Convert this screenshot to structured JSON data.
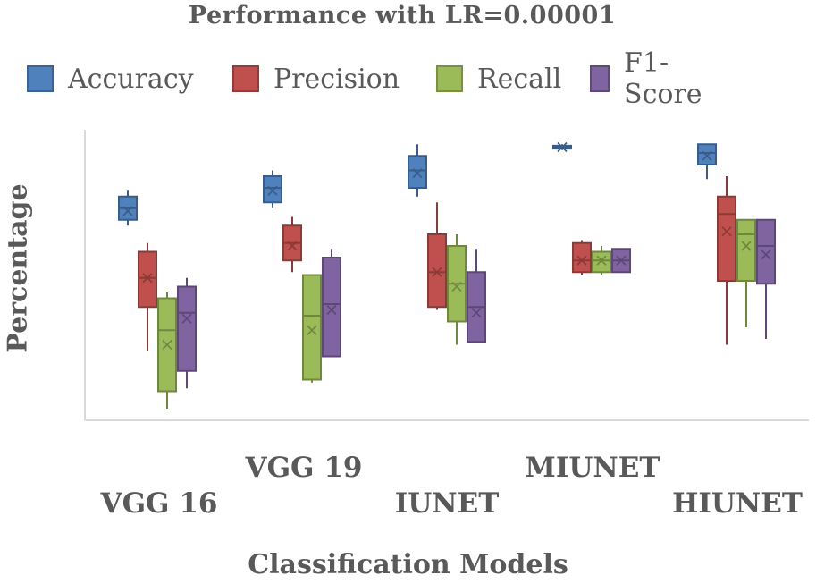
{
  "chart_data": {
    "type": "box",
    "title": "Performance with LR=0.00001",
    "xlabel": "Classification Models",
    "ylabel": "Percentage",
    "ylim": [
      0,
      100
    ],
    "grid": false,
    "legend_position": "top",
    "categories": [
      "VGG 16",
      "VGG 19",
      "IUNET",
      "MIUNET",
      "HIUNET"
    ],
    "series": [
      {
        "name": "Accuracy",
        "color": "#4F81BD",
        "boxes": [
          {
            "min": 67,
            "q1": 69,
            "median": 73,
            "mean": 72,
            "q3": 77,
            "max": 79
          },
          {
            "min": 73,
            "q1": 75,
            "median": 80,
            "mean": 79,
            "q3": 84,
            "max": 86
          },
          {
            "min": 77,
            "q1": 80,
            "median": 86,
            "mean": 85,
            "q3": 91,
            "max": 95
          },
          {
            "min": 93,
            "q1": 93.5,
            "median": 94,
            "mean": 94,
            "q3": 94.5,
            "max": 95
          },
          {
            "min": 83,
            "q1": 88,
            "median": 92,
            "mean": 91,
            "q3": 95,
            "max": 95
          }
        ]
      },
      {
        "name": "Precision",
        "color": "#C0504D",
        "boxes": [
          {
            "min": 24,
            "q1": 39,
            "median": 49,
            "mean": 49,
            "q3": 58,
            "max": 61
          },
          {
            "min": 51,
            "q1": 55,
            "median": 61,
            "mean": 60,
            "q3": 67,
            "max": 70
          },
          {
            "min": 38,
            "q1": 39,
            "median": 51,
            "mean": 51,
            "q3": 64,
            "max": 75
          },
          {
            "min": 50,
            "q1": 51,
            "median": 55,
            "mean": 55,
            "q3": 61,
            "max": 62
          },
          {
            "min": 26,
            "q1": 48,
            "median": 71,
            "mean": 65,
            "q3": 77,
            "max": 84
          }
        ]
      },
      {
        "name": "Recall",
        "color": "#9BBB59",
        "boxes": [
          {
            "min": 4,
            "q1": 10,
            "median": 31,
            "mean": 26,
            "q3": 42,
            "max": 44
          },
          {
            "min": 13,
            "q1": 14,
            "median": 36,
            "mean": 31,
            "q3": 50,
            "max": 50
          },
          {
            "min": 26,
            "q1": 34,
            "median": 47,
            "mean": 46,
            "q3": 60,
            "max": 64
          },
          {
            "min": 50,
            "q1": 51,
            "median": 55,
            "mean": 55,
            "q3": 58,
            "max": 60
          },
          {
            "min": 32,
            "q1": 48,
            "median": 64,
            "mean": 60,
            "q3": 69,
            "max": 69
          }
        ]
      },
      {
        "name": "F1-Score",
        "color": "#8064A2",
        "boxes": [
          {
            "min": 11,
            "q1": 17,
            "median": 37,
            "mean": 35,
            "q3": 46,
            "max": 49
          },
          {
            "min": 22,
            "q1": 22,
            "median": 40,
            "mean": 38,
            "q3": 56,
            "max": 59
          },
          {
            "min": 27,
            "q1": 27,
            "median": 39,
            "mean": 37,
            "q3": 51,
            "max": 59
          },
          {
            "min": 51,
            "q1": 51,
            "median": 55,
            "mean": 55,
            "q3": 59,
            "max": 59
          },
          {
            "min": 28,
            "q1": 47,
            "median": 60,
            "mean": 57,
            "q3": 69,
            "max": 69
          }
        ]
      }
    ]
  }
}
